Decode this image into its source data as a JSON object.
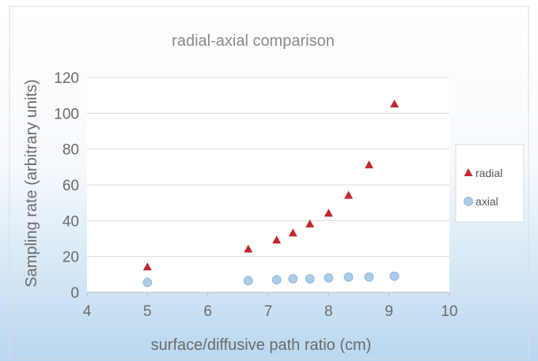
{
  "chart_data": {
    "type": "scatter",
    "title": "radial-axial comparison",
    "xlabel": "surface/diffusive path ratio (cm)",
    "ylabel": "Sampling rate (arbitrary units)",
    "xlim": [
      4,
      10
    ],
    "ylim": [
      0,
      120
    ],
    "xticks": [
      4,
      5,
      6,
      7,
      8,
      9,
      10
    ],
    "yticks": [
      0,
      20,
      40,
      60,
      80,
      100,
      120
    ],
    "grid": true,
    "legend_position": "right",
    "series": [
      {
        "name": "radial",
        "marker": "triangle",
        "color": "#c0282d",
        "x": [
          5.0,
          6.67,
          7.14,
          7.41,
          7.69,
          8.0,
          8.33,
          8.67,
          9.09
        ],
        "y": [
          14,
          24,
          29,
          33,
          38,
          44,
          54,
          71,
          105
        ]
      },
      {
        "name": "axial",
        "marker": "circle",
        "color": "#a9cdea",
        "x": [
          5.0,
          6.67,
          7.14,
          7.41,
          7.69,
          8.0,
          8.33,
          8.67,
          9.09
        ],
        "y": [
          5.5,
          6.5,
          7.0,
          7.5,
          7.5,
          8.0,
          8.5,
          8.5,
          9.0
        ]
      }
    ]
  }
}
